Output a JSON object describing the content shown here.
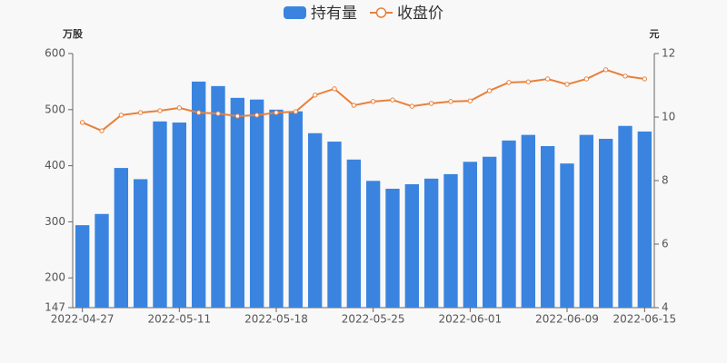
{
  "chart_data": {
    "type": "bar-line",
    "categories": [
      "2022-04-27",
      null,
      null,
      null,
      null,
      "2022-05-11",
      null,
      null,
      null,
      null,
      "2022-05-18",
      null,
      null,
      null,
      null,
      "2022-05-25",
      null,
      null,
      null,
      null,
      "2022-06-01",
      null,
      null,
      null,
      null,
      "2022-06-09",
      null,
      null,
      null,
      "2022-06-15"
    ],
    "series": [
      {
        "name": "持有量",
        "type": "bar",
        "color": "#3a84e0",
        "axis": "y",
        "values": [
          294,
          314,
          396,
          376,
          479,
          477,
          550,
          542,
          521,
          518,
          500,
          497,
          458,
          443,
          411,
          373,
          359,
          367,
          377,
          385,
          407,
          416,
          445,
          455,
          435,
          404,
          455,
          448,
          471,
          461
        ]
      },
      {
        "name": "收盘价",
        "type": "line",
        "color": "#e8803a",
        "axis": "y2",
        "values": [
          9.83,
          9.57,
          10.06,
          10.14,
          10.2,
          10.29,
          10.14,
          10.11,
          10.03,
          10.06,
          10.14,
          10.17,
          10.69,
          10.89,
          10.37,
          10.49,
          10.54,
          10.34,
          10.43,
          10.49,
          10.51,
          10.83,
          11.09,
          11.11,
          11.2,
          11.03,
          11.2,
          11.49,
          11.29,
          11.2
        ]
      }
    ],
    "ylabel": "万股",
    "y2label": "元",
    "ylim": [
      147,
      600
    ],
    "yticks": [
      147,
      200,
      300,
      400,
      500,
      600
    ],
    "y2lim": [
      4,
      12
    ],
    "y2ticks": [
      4,
      6,
      8,
      10,
      12
    ],
    "grid": false
  }
}
